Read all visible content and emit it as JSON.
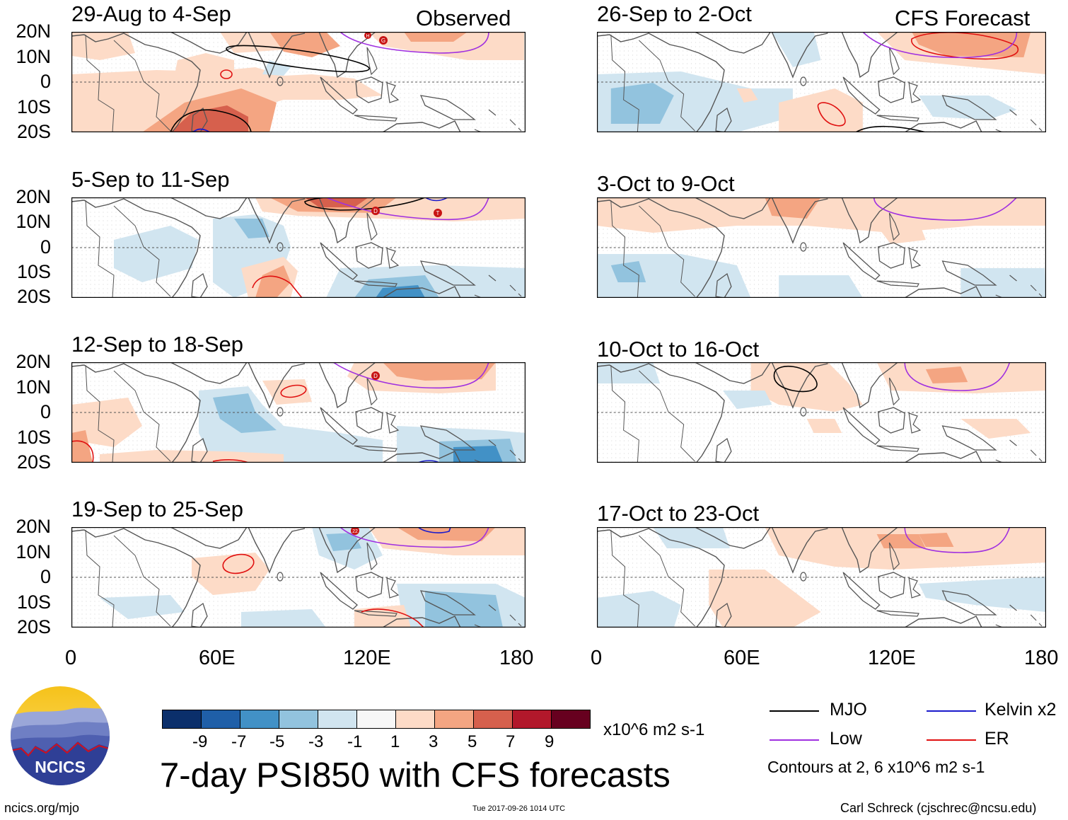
{
  "header": {
    "left": "Observed",
    "right": "CFS Forecast"
  },
  "panels": {
    "obs": [
      {
        "title": "29-Aug to 4-Sep"
      },
      {
        "title": "5-Sep to 11-Sep"
      },
      {
        "title": "12-Sep to 18-Sep"
      },
      {
        "title": "19-Sep to 25-Sep"
      }
    ],
    "fcst": [
      {
        "title": "26-Sep to 2-Oct"
      },
      {
        "title": "3-Oct to 9-Oct"
      },
      {
        "title": "10-Oct to 16-Oct"
      },
      {
        "title": "17-Oct to 23-Oct"
      }
    ]
  },
  "axes": {
    "lat_labels": [
      "20N",
      "10N",
      "0",
      "10S",
      "20S"
    ],
    "lon_labels": [
      "0",
      "60E",
      "120E",
      "180"
    ]
  },
  "storm_markers": {
    "obs1": [
      "H",
      "G"
    ],
    "obs2": [
      "D",
      "T"
    ],
    "obs3": [
      "D"
    ],
    "obs4": [
      "22"
    ]
  },
  "colorbar": {
    "colors": [
      "#0b2f6b",
      "#1f5fa8",
      "#4291c6",
      "#92c3de",
      "#d1e5f0",
      "#f7f7f7",
      "#fddbc7",
      "#f4a582",
      "#d6604d",
      "#b2182b",
      "#67001f"
    ],
    "ticks": [
      "-9",
      "-7",
      "-5",
      "-3",
      "-1",
      "1",
      "3",
      "5",
      "7",
      "9"
    ],
    "units": "x10^6 m2 s-1"
  },
  "title": "7-day PSI850 with CFS forecasts",
  "legend": {
    "items": [
      {
        "label": "MJO",
        "color": "#000000"
      },
      {
        "label": "Kelvin x2",
        "color": "#1a1acc"
      },
      {
        "label": "Low",
        "color": "#a030e0"
      },
      {
        "label": "ER",
        "color": "#e01010"
      }
    ],
    "note": "Contours at 2, 6 x10^6 m2 s-1"
  },
  "logo": {
    "text": "NCICS"
  },
  "footer": {
    "url": "ncics.org/mjo",
    "timestamp": "Tue 2017-09-26 1014 UTC",
    "author": "Carl Schreck (cjschrec@ncsu.edu)"
  }
}
